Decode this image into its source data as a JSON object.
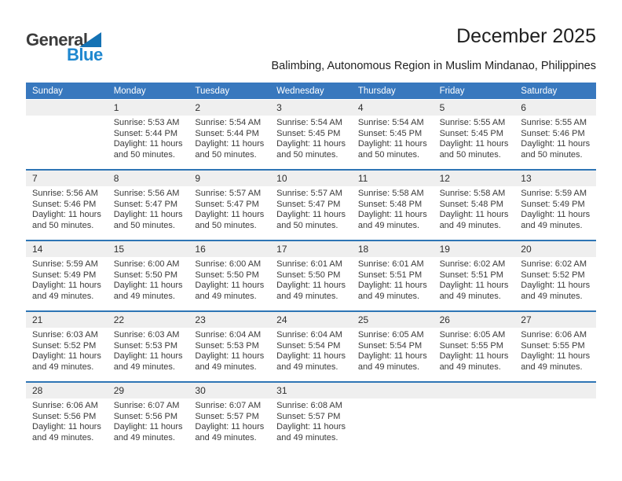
{
  "logo": {
    "part1": "General",
    "part2": "Blue"
  },
  "header": {
    "title": "December 2025",
    "subtitle": "Balimbing, Autonomous Region in Muslim Mindanao, Philippines"
  },
  "colors": {
    "header_bg": "#3878BE",
    "week_divider": "#2E75B5",
    "band_bg": "#EFEFEF",
    "logo_blue": "#1E87CF",
    "triangle_blue": "#1472B4"
  },
  "weekdays": [
    "Sunday",
    "Monday",
    "Tuesday",
    "Wednesday",
    "Thursday",
    "Friday",
    "Saturday"
  ],
  "weeks": [
    [
      null,
      {
        "day": "1",
        "sunrise": "Sunrise: 5:53 AM",
        "sunset": "Sunset: 5:44 PM",
        "daylight": "Daylight: 11 hours and 50 minutes."
      },
      {
        "day": "2",
        "sunrise": "Sunrise: 5:54 AM",
        "sunset": "Sunset: 5:44 PM",
        "daylight": "Daylight: 11 hours and 50 minutes."
      },
      {
        "day": "3",
        "sunrise": "Sunrise: 5:54 AM",
        "sunset": "Sunset: 5:45 PM",
        "daylight": "Daylight: 11 hours and 50 minutes."
      },
      {
        "day": "4",
        "sunrise": "Sunrise: 5:54 AM",
        "sunset": "Sunset: 5:45 PM",
        "daylight": "Daylight: 11 hours and 50 minutes."
      },
      {
        "day": "5",
        "sunrise": "Sunrise: 5:55 AM",
        "sunset": "Sunset: 5:45 PM",
        "daylight": "Daylight: 11 hours and 50 minutes."
      },
      {
        "day": "6",
        "sunrise": "Sunrise: 5:55 AM",
        "sunset": "Sunset: 5:46 PM",
        "daylight": "Daylight: 11 hours and 50 minutes."
      }
    ],
    [
      {
        "day": "7",
        "sunrise": "Sunrise: 5:56 AM",
        "sunset": "Sunset: 5:46 PM",
        "daylight": "Daylight: 11 hours and 50 minutes."
      },
      {
        "day": "8",
        "sunrise": "Sunrise: 5:56 AM",
        "sunset": "Sunset: 5:47 PM",
        "daylight": "Daylight: 11 hours and 50 minutes."
      },
      {
        "day": "9",
        "sunrise": "Sunrise: 5:57 AM",
        "sunset": "Sunset: 5:47 PM",
        "daylight": "Daylight: 11 hours and 50 minutes."
      },
      {
        "day": "10",
        "sunrise": "Sunrise: 5:57 AM",
        "sunset": "Sunset: 5:47 PM",
        "daylight": "Daylight: 11 hours and 50 minutes."
      },
      {
        "day": "11",
        "sunrise": "Sunrise: 5:58 AM",
        "sunset": "Sunset: 5:48 PM",
        "daylight": "Daylight: 11 hours and 49 minutes."
      },
      {
        "day": "12",
        "sunrise": "Sunrise: 5:58 AM",
        "sunset": "Sunset: 5:48 PM",
        "daylight": "Daylight: 11 hours and 49 minutes."
      },
      {
        "day": "13",
        "sunrise": "Sunrise: 5:59 AM",
        "sunset": "Sunset: 5:49 PM",
        "daylight": "Daylight: 11 hours and 49 minutes."
      }
    ],
    [
      {
        "day": "14",
        "sunrise": "Sunrise: 5:59 AM",
        "sunset": "Sunset: 5:49 PM",
        "daylight": "Daylight: 11 hours and 49 minutes."
      },
      {
        "day": "15",
        "sunrise": "Sunrise: 6:00 AM",
        "sunset": "Sunset: 5:50 PM",
        "daylight": "Daylight: 11 hours and 49 minutes."
      },
      {
        "day": "16",
        "sunrise": "Sunrise: 6:00 AM",
        "sunset": "Sunset: 5:50 PM",
        "daylight": "Daylight: 11 hours and 49 minutes."
      },
      {
        "day": "17",
        "sunrise": "Sunrise: 6:01 AM",
        "sunset": "Sunset: 5:50 PM",
        "daylight": "Daylight: 11 hours and 49 minutes."
      },
      {
        "day": "18",
        "sunrise": "Sunrise: 6:01 AM",
        "sunset": "Sunset: 5:51 PM",
        "daylight": "Daylight: 11 hours and 49 minutes."
      },
      {
        "day": "19",
        "sunrise": "Sunrise: 6:02 AM",
        "sunset": "Sunset: 5:51 PM",
        "daylight": "Daylight: 11 hours and 49 minutes."
      },
      {
        "day": "20",
        "sunrise": "Sunrise: 6:02 AM",
        "sunset": "Sunset: 5:52 PM",
        "daylight": "Daylight: 11 hours and 49 minutes."
      }
    ],
    [
      {
        "day": "21",
        "sunrise": "Sunrise: 6:03 AM",
        "sunset": "Sunset: 5:52 PM",
        "daylight": "Daylight: 11 hours and 49 minutes."
      },
      {
        "day": "22",
        "sunrise": "Sunrise: 6:03 AM",
        "sunset": "Sunset: 5:53 PM",
        "daylight": "Daylight: 11 hours and 49 minutes."
      },
      {
        "day": "23",
        "sunrise": "Sunrise: 6:04 AM",
        "sunset": "Sunset: 5:53 PM",
        "daylight": "Daylight: 11 hours and 49 minutes."
      },
      {
        "day": "24",
        "sunrise": "Sunrise: 6:04 AM",
        "sunset": "Sunset: 5:54 PM",
        "daylight": "Daylight: 11 hours and 49 minutes."
      },
      {
        "day": "25",
        "sunrise": "Sunrise: 6:05 AM",
        "sunset": "Sunset: 5:54 PM",
        "daylight": "Daylight: 11 hours and 49 minutes."
      },
      {
        "day": "26",
        "sunrise": "Sunrise: 6:05 AM",
        "sunset": "Sunset: 5:55 PM",
        "daylight": "Daylight: 11 hours and 49 minutes."
      },
      {
        "day": "27",
        "sunrise": "Sunrise: 6:06 AM",
        "sunset": "Sunset: 5:55 PM",
        "daylight": "Daylight: 11 hours and 49 minutes."
      }
    ],
    [
      {
        "day": "28",
        "sunrise": "Sunrise: 6:06 AM",
        "sunset": "Sunset: 5:56 PM",
        "daylight": "Daylight: 11 hours and 49 minutes."
      },
      {
        "day": "29",
        "sunrise": "Sunrise: 6:07 AM",
        "sunset": "Sunset: 5:56 PM",
        "daylight": "Daylight: 11 hours and 49 minutes."
      },
      {
        "day": "30",
        "sunrise": "Sunrise: 6:07 AM",
        "sunset": "Sunset: 5:57 PM",
        "daylight": "Daylight: 11 hours and 49 minutes."
      },
      {
        "day": "31",
        "sunrise": "Sunrise: 6:08 AM",
        "sunset": "Sunset: 5:57 PM",
        "daylight": "Daylight: 11 hours and 49 minutes."
      },
      null,
      null,
      null
    ]
  ]
}
